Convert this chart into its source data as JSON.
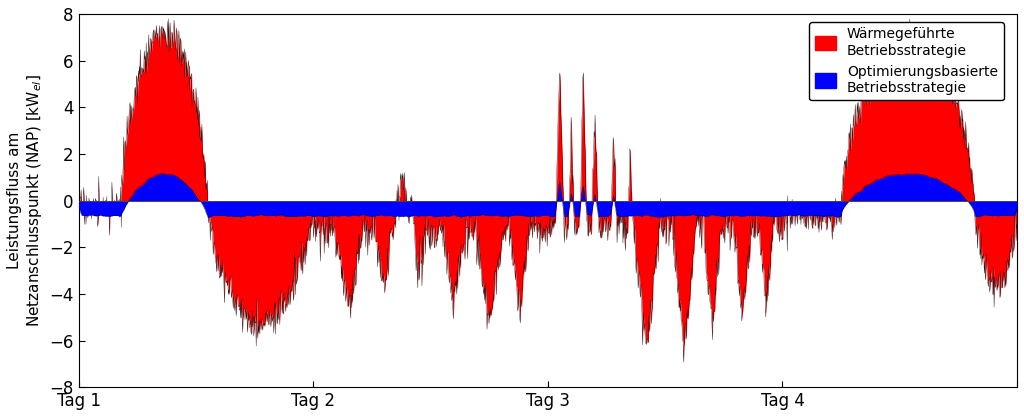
{
  "xlim": [
    0,
    4
  ],
  "ylim": [
    -8,
    8
  ],
  "yticks": [
    -8,
    -6,
    -4,
    -2,
    0,
    2,
    4,
    6,
    8
  ],
  "xticks": [
    0,
    1,
    2,
    3,
    4
  ],
  "xticklabels": [
    "Tag 1",
    "Tag 2",
    "Tag 3",
    "Tag 4",
    ""
  ],
  "color_red": "#FF0000",
  "color_blue": "#0000FF",
  "legend_red": "Wärmegeführte\nBetriebsstrategie",
  "legend_blue": "Optimierungsbasierte\nBetriebsstrategie",
  "figsize": [
    10.24,
    4.17
  ],
  "dpi": 100
}
